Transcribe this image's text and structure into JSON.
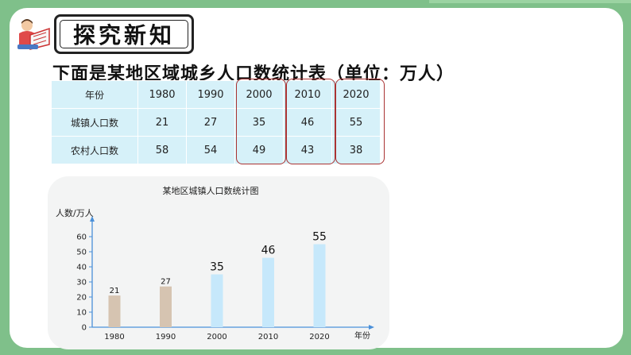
{
  "title": "探究新知",
  "heading": "下面是某地区域城乡人口数统计表（单位：万人）",
  "table": {
    "header_label": "年份",
    "years": [
      "1980",
      "1990",
      "2000",
      "2010",
      "2020"
    ],
    "rows": [
      {
        "label": "城镇人口数",
        "values": [
          "21",
          "27",
          "35",
          "46",
          "55"
        ]
      },
      {
        "label": "农村人口数",
        "values": [
          "58",
          "54",
          "49",
          "43",
          "38"
        ]
      }
    ]
  },
  "icons": [
    "reader-icon"
  ],
  "colors": {
    "background": "#7fc08a",
    "table_fill": "#d6f1f9",
    "highlight_border": "#aa3333",
    "bar_old": "#d6c4b1",
    "bar_new": "#c6e8fb"
  },
  "chart_data": {
    "type": "bar",
    "title": "某地区城镇人口数统计图",
    "ylabel": "人数/万人",
    "xlabel": "年份",
    "categories": [
      "1980",
      "1990",
      "2000",
      "2010",
      "2020"
    ],
    "values": [
      21,
      27,
      35,
      46,
      55
    ],
    "value_labels": [
      "21",
      "27",
      "35",
      "46",
      "55"
    ],
    "yticks": [
      "0",
      "10",
      "20",
      "30",
      "40",
      "50",
      "60"
    ],
    "ylim": [
      0,
      60
    ],
    "grid": false
  }
}
